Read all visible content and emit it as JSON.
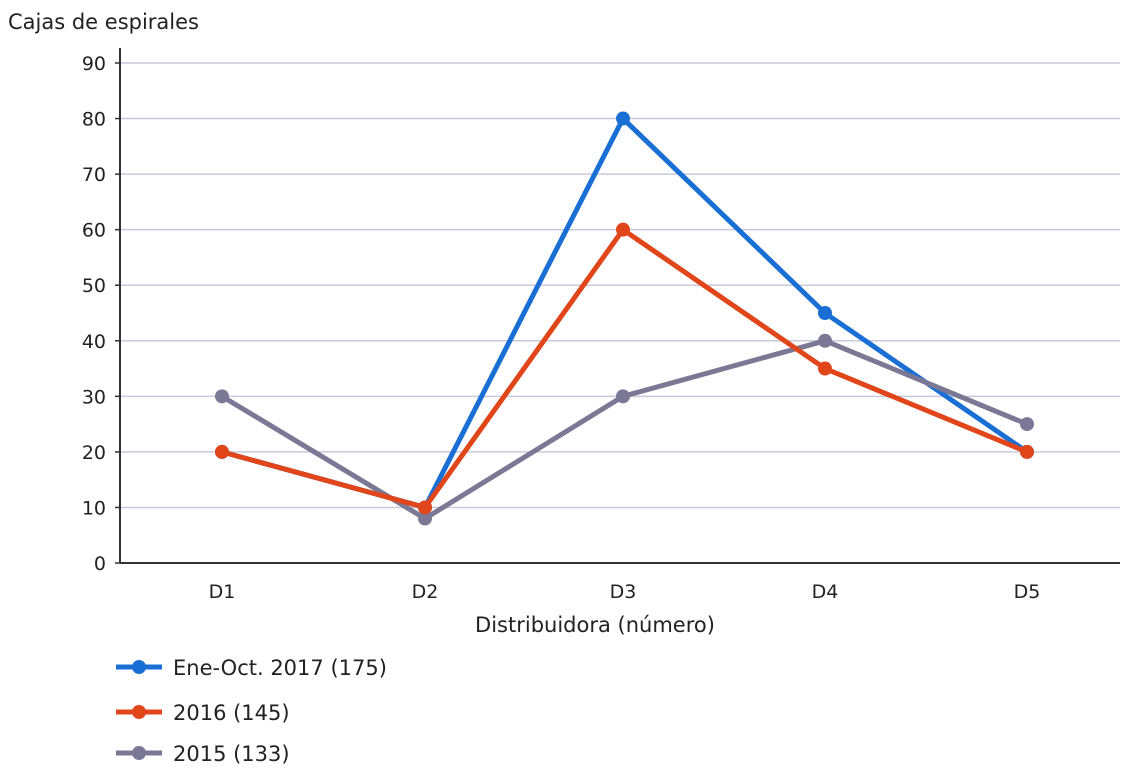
{
  "chart_data": {
    "type": "line",
    "title": "",
    "ylabel": "Cajas de espirales",
    "xlabel": "Distribuidora (número)",
    "categories": [
      "D1",
      "D2",
      "D3",
      "D4",
      "D5"
    ],
    "ylim": [
      0,
      90
    ],
    "yticks": [
      0,
      10,
      20,
      30,
      40,
      50,
      60,
      70,
      80,
      90
    ],
    "grid": true,
    "legend_position": "bottom-left",
    "series": [
      {
        "name": "Ene-Oct. 2017 (175)",
        "color": "#1a6fd4",
        "values": [
          20,
          10,
          80,
          45,
          20
        ]
      },
      {
        "name": "2016 (145)",
        "color": "#e0461a",
        "values": [
          20,
          10,
          60,
          35,
          20
        ]
      },
      {
        "name": "2015 (133)",
        "color": "#7b7895",
        "values": [
          30,
          8,
          30,
          40,
          25
        ]
      }
    ]
  }
}
